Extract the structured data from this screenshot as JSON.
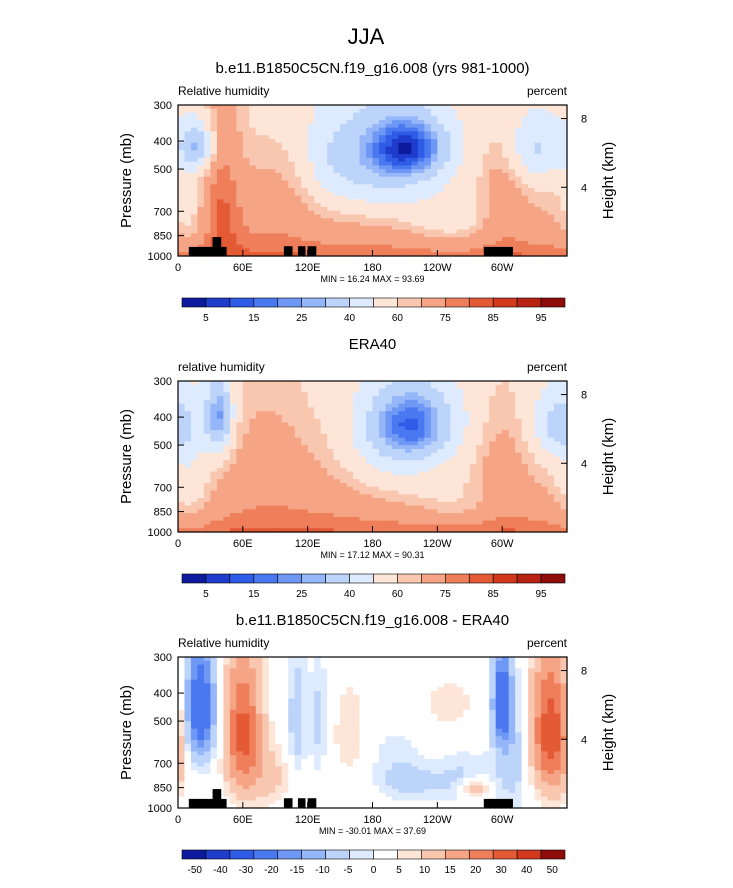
{
  "figure_title": "JJA",
  "chart_data": [
    {
      "type": "heatmap",
      "title": "b.e11.B1850C5CN.f19_g16.008 (yrs 981-1000)",
      "left_label": "Relative humidity",
      "right_label": "percent",
      "ylabel": "Pressure (mb)",
      "y2label": "Height (km)",
      "x_ticks": [
        "0",
        "60E",
        "120E",
        "180",
        "120W",
        "60W"
      ],
      "x_tick_values": [
        0,
        60,
        120,
        180,
        240,
        300
      ],
      "xlim": [
        0,
        360
      ],
      "y_ticks": [
        "300",
        "400",
        "500",
        "700",
        "850",
        "1000"
      ],
      "y_tick_values": [
        300,
        400,
        500,
        700,
        850,
        1000
      ],
      "ylim": [
        1000,
        300
      ],
      "y_scale": "log",
      "y2_ticks": [
        "8",
        "4"
      ],
      "y2_tick_values": [
        8,
        4
      ],
      "stats": "MIN = 16.24   MAX = 93.69",
      "min": 16.24,
      "max": 93.69,
      "colorbar_labels": [
        "5",
        "15",
        "25",
        "40",
        "60",
        "75",
        "85",
        "95"
      ],
      "has_topography": true,
      "field": "model"
    },
    {
      "type": "heatmap",
      "title": "ERA40",
      "left_label": "relative humidity",
      "right_label": "percent",
      "ylabel": "Pressure (mb)",
      "y2label": "Height (km)",
      "x_ticks": [
        "0",
        "60E",
        "120E",
        "180",
        "120W",
        "60W"
      ],
      "x_tick_values": [
        0,
        60,
        120,
        180,
        240,
        300
      ],
      "xlim": [
        0,
        360
      ],
      "y_ticks": [
        "300",
        "400",
        "500",
        "700",
        "850",
        "1000"
      ],
      "y_tick_values": [
        300,
        400,
        500,
        700,
        850,
        1000
      ],
      "ylim": [
        1000,
        300
      ],
      "y_scale": "log",
      "y2_ticks": [
        "8",
        "4"
      ],
      "y2_tick_values": [
        8,
        4
      ],
      "stats": "MIN = 17.12   MAX = 90.31",
      "min": 17.12,
      "max": 90.31,
      "colorbar_labels": [
        "5",
        "15",
        "25",
        "40",
        "60",
        "75",
        "85",
        "95"
      ],
      "has_topography": false,
      "field": "obs"
    },
    {
      "type": "heatmap",
      "title": "b.e11.B1850C5CN.f19_g16.008 - ERA40",
      "left_label": "Relative humidity",
      "right_label": "percent",
      "ylabel": "Pressure (mb)",
      "y2label": "Height (km)",
      "x_ticks": [
        "0",
        "60E",
        "120E",
        "180",
        "120W",
        "60W"
      ],
      "x_tick_values": [
        0,
        60,
        120,
        180,
        240,
        300
      ],
      "xlim": [
        0,
        360
      ],
      "y_ticks": [
        "300",
        "400",
        "500",
        "700",
        "850",
        "1000"
      ],
      "y_tick_values": [
        300,
        400,
        500,
        700,
        850,
        1000
      ],
      "ylim": [
        1000,
        300
      ],
      "y_scale": "log",
      "y2_ticks": [
        "8",
        "4"
      ],
      "y2_tick_values": [
        8,
        4
      ],
      "stats": "MIN = -30.01   MAX = 37.69",
      "min": -30.01,
      "max": 37.69,
      "colorbar_labels": [
        "-50",
        "-40",
        "-30",
        "-20",
        "-15",
        "-10",
        "-5",
        "0",
        "5",
        "10",
        "15",
        "20",
        "30",
        "40",
        "50"
      ],
      "has_topography": true,
      "field": "diff"
    }
  ],
  "colors": {
    "abs_levels": [
      "#0d1a9e",
      "#1f3ccc",
      "#2e5ce6",
      "#4a78f0",
      "#6f98f5",
      "#95b6f8",
      "#bcd3fa",
      "#deeafd",
      "#fde6d8",
      "#f9c7b0",
      "#f5a585",
      "#ef7f5a",
      "#e45a35",
      "#d2381c",
      "#b82213",
      "#8e0d0a"
    ],
    "diff_levels": [
      "#0d1a9e",
      "#1f3ccc",
      "#2e5ce6",
      "#4a78f0",
      "#6f98f5",
      "#95b6f8",
      "#bcd3fa",
      "#deeafd",
      "#ffffff",
      "#fde6d8",
      "#f9c7b0",
      "#f5a585",
      "#ef7f5a",
      "#e45a35",
      "#d2381c",
      "#8e0d0a"
    ]
  },
  "topography": [
    {
      "lon_start": 10,
      "lon_end": 45,
      "p_top": 930
    },
    {
      "lon_start": 32,
      "lon_end": 40,
      "p_top": 860
    },
    {
      "lon_start": 98,
      "lon_end": 106,
      "p_top": 925
    },
    {
      "lon_start": 111,
      "lon_end": 118,
      "p_top": 925
    },
    {
      "lon_start": 120,
      "lon_end": 128,
      "p_top": 925
    },
    {
      "lon_start": 283,
      "lon_end": 310,
      "p_top": 930
    }
  ]
}
